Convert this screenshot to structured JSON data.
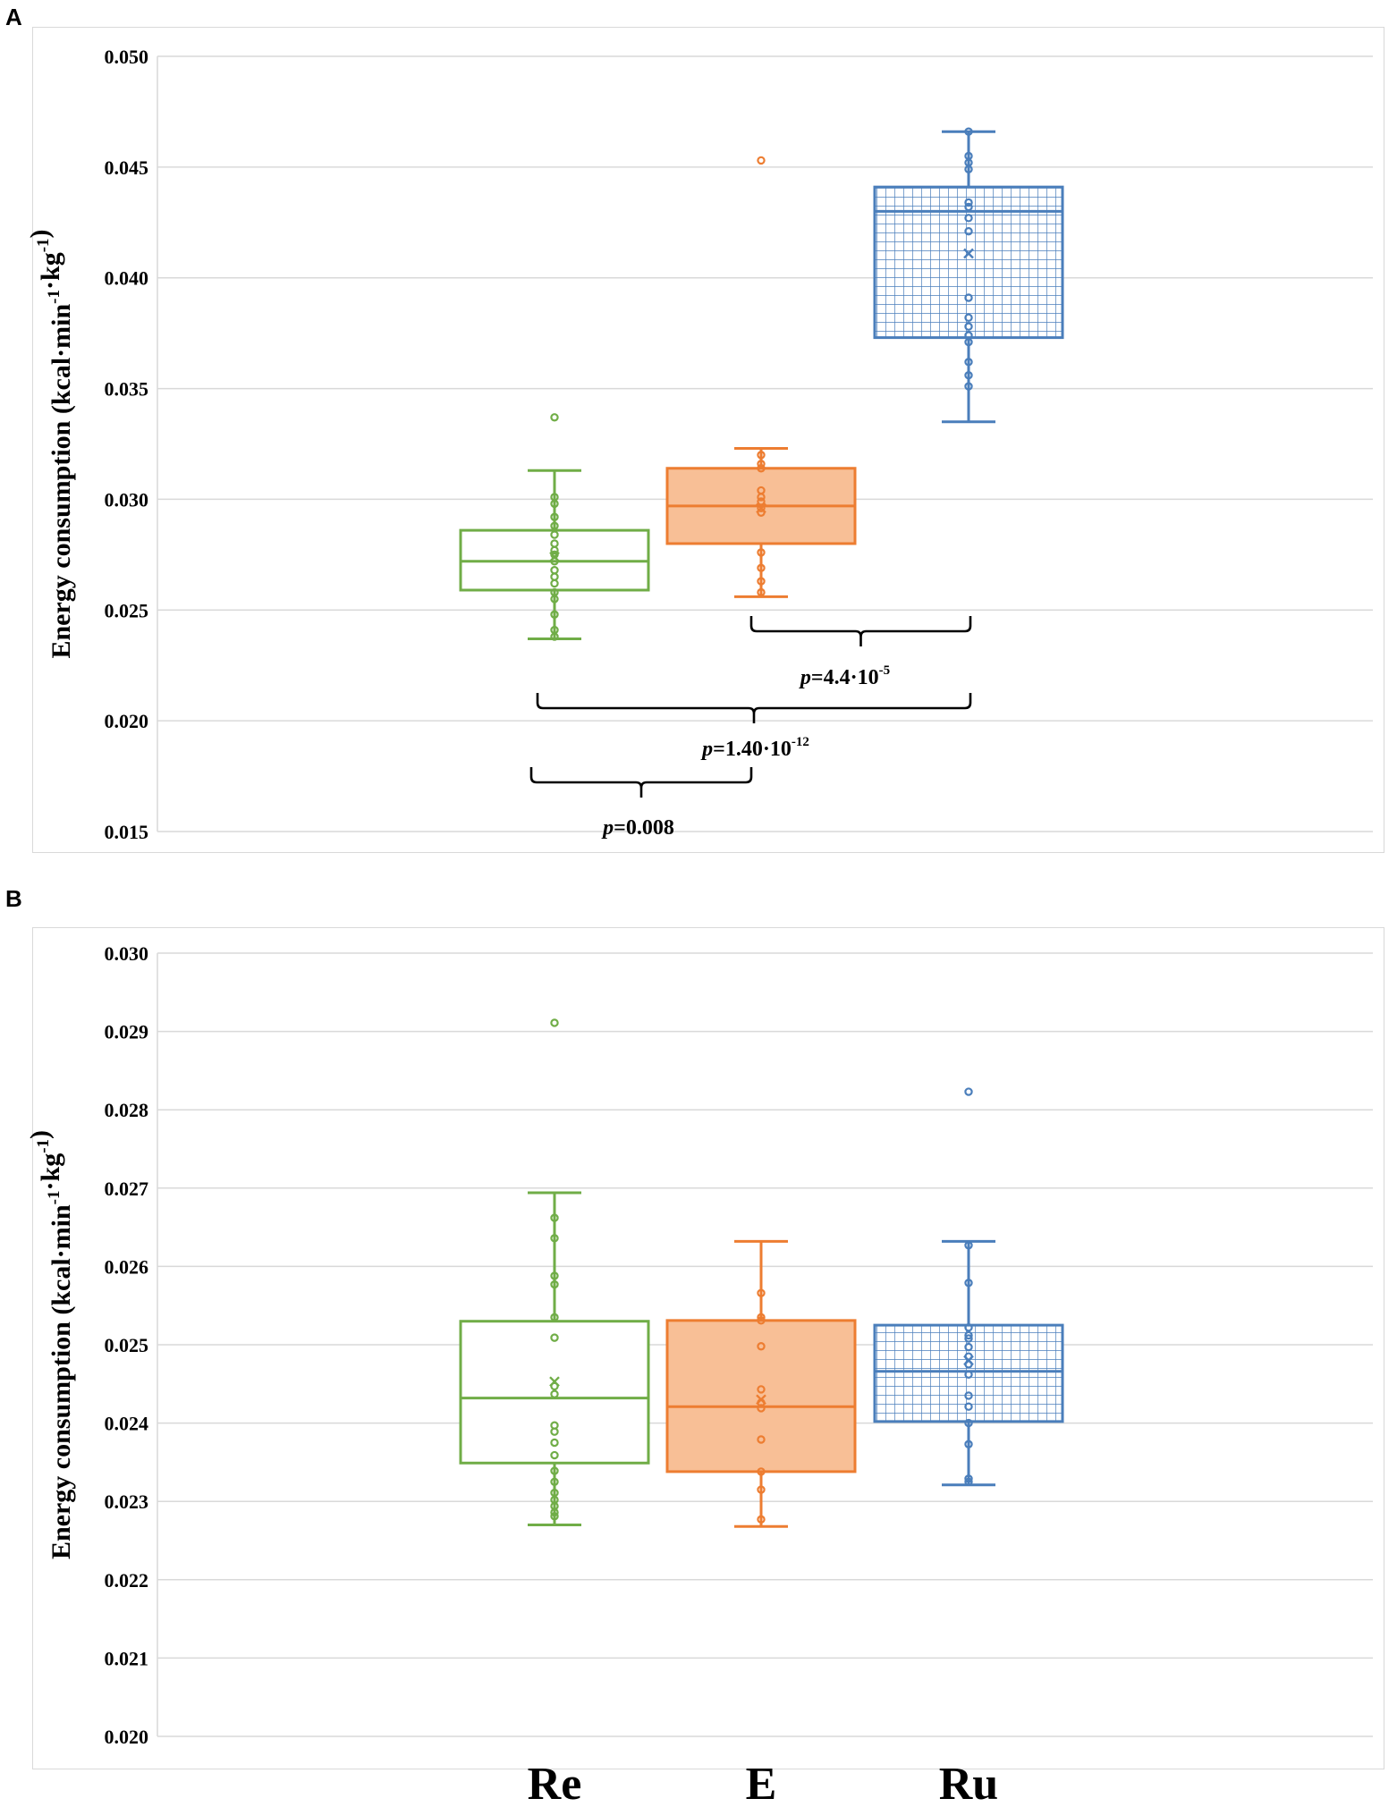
{
  "panels": [
    "A",
    "B"
  ],
  "colors": {
    "Re": "#70ad47",
    "E": "#ed7d31",
    "E_fill": "#f8bf96",
    "Ru": "#4a7ebb",
    "grid": "#d9d9d9"
  },
  "chart_data": [
    {
      "type": "box",
      "panel": "A",
      "title": "",
      "ylabel": "Energy consumption (kcal·min⁻¹·kg⁻¹)",
      "ylim": [
        0.015,
        0.05
      ],
      "yticks": [
        "0.015",
        "0.020",
        "0.025",
        "0.030",
        "0.035",
        "0.040",
        "0.045",
        "0.050"
      ],
      "categories": [
        "Re",
        "E",
        "Ru"
      ],
      "series": [
        {
          "name": "Re",
          "whisker_low": 0.0237,
          "q1": 0.0259,
          "median": 0.0272,
          "q3": 0.0286,
          "whisker_high": 0.0313,
          "mean": 0.0274,
          "points": [
            0.0337,
            0.0301,
            0.0298,
            0.0292,
            0.0288,
            0.0284,
            0.028,
            0.0277,
            0.0275,
            0.0272,
            0.0268,
            0.0265,
            0.0262,
            0.0258,
            0.0255,
            0.0248,
            0.0241,
            0.0238
          ]
        },
        {
          "name": "E",
          "whisker_low": 0.0256,
          "q1": 0.028,
          "median": 0.0297,
          "q3": 0.0314,
          "whisker_high": 0.0323,
          "mean": 0.0296,
          "points": [
            0.0453,
            0.032,
            0.0316,
            0.0314,
            0.0304,
            0.0301,
            0.0299,
            0.0296,
            0.0294,
            0.0276,
            0.0269,
            0.0263,
            0.0258
          ]
        },
        {
          "name": "Ru",
          "whisker_low": 0.0335,
          "q1": 0.0373,
          "median": 0.043,
          "q3": 0.0441,
          "whisker_high": 0.0466,
          "mean": 0.0411,
          "points": [
            0.0466,
            0.0455,
            0.0452,
            0.0449,
            0.0434,
            0.0432,
            0.0427,
            0.0421,
            0.0391,
            0.0382,
            0.0378,
            0.0374,
            0.0371,
            0.0362,
            0.0356,
            0.0351
          ]
        }
      ],
      "annotations": [
        {
          "label_prefix": "p",
          "label_value": "=4.4·10",
          "label_exp": "-5",
          "from": "E",
          "to": "Ru"
        },
        {
          "label_prefix": "p",
          "label_value": "=1.40·10",
          "label_exp": "-12",
          "from": "Re",
          "to": "Ru"
        },
        {
          "label_prefix": "p",
          "label_value": "=0.008",
          "label_exp": "",
          "from": "Re",
          "to": "E"
        }
      ]
    },
    {
      "type": "box",
      "panel": "B",
      "title": "",
      "ylabel": "Energy consumption (kcal·min⁻¹·kg⁻¹)",
      "ylim": [
        0.02,
        0.03
      ],
      "yticks": [
        "0.020",
        "0.021",
        "0.022",
        "0.023",
        "0.024",
        "0.025",
        "0.026",
        "0.027",
        "0.028",
        "0.029",
        "0.030"
      ],
      "categories": [
        "Re",
        "E",
        "Ru"
      ],
      "xlabels": [
        "Re",
        "E",
        "Ru"
      ],
      "series": [
        {
          "name": "Re",
          "whisker_low": 0.0227,
          "q1": 0.02349,
          "median": 0.02432,
          "q3": 0.0253,
          "whisker_high": 0.02694,
          "mean": 0.02453,
          "points": [
            0.02911,
            0.02662,
            0.02636,
            0.02588,
            0.02577,
            0.02535,
            0.02509,
            0.02447,
            0.02437,
            0.02397,
            0.02389,
            0.02375,
            0.02359,
            0.02339,
            0.02325,
            0.02311,
            0.02302,
            0.02294,
            0.02286,
            0.02281
          ]
        },
        {
          "name": "E",
          "whisker_low": 0.02268,
          "q1": 0.02338,
          "median": 0.02421,
          "q3": 0.02531,
          "whisker_high": 0.02632,
          "mean": 0.0243,
          "points": [
            0.02566,
            0.02535,
            0.02531,
            0.02498,
            0.02443,
            0.02426,
            0.02419,
            0.02379,
            0.02338,
            0.02315,
            0.02277
          ]
        },
        {
          "name": "Ru",
          "whisker_low": 0.02321,
          "q1": 0.02402,
          "median": 0.02466,
          "q3": 0.02525,
          "whisker_high": 0.02632,
          "mean": 0.0248,
          "points": [
            0.02823,
            0.02627,
            0.02579,
            0.02522,
            0.02512,
            0.02508,
            0.02497,
            0.02485,
            0.02475,
            0.02462,
            0.02435,
            0.02421,
            0.024,
            0.02373,
            0.02329,
            0.02325
          ]
        }
      ]
    }
  ]
}
